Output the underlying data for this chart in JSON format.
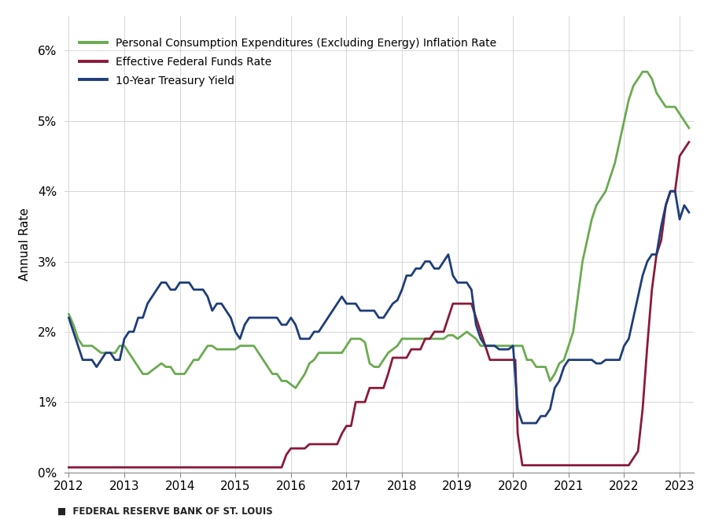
{
  "ylabel": "Annual Rate",
  "xlabel": "",
  "ylim": [
    0.0,
    0.065
  ],
  "yticks": [
    0.0,
    0.01,
    0.02,
    0.03,
    0.04,
    0.05,
    0.06
  ],
  "ytick_labels": [
    "0%",
    "1%",
    "2%",
    "3%",
    "4%",
    "5%",
    "6%"
  ],
  "background_color": "#ffffff",
  "footer": "■  FEDERAL RESERVE BANK OF ST. LOUIS",
  "legend": [
    {
      "label": "Personal Consumption Expenditures (Excluding Energy) Inflation Rate",
      "color": "#6aaa50"
    },
    {
      "label": "Effective Federal Funds Rate",
      "color": "#8b1a3a"
    },
    {
      "label": "10-Year Treasury Yield",
      "color": "#1e3d7a"
    }
  ],
  "pce": {
    "dates": [
      2012.0,
      2012.083,
      2012.167,
      2012.25,
      2012.333,
      2012.417,
      2012.5,
      2012.583,
      2012.667,
      2012.75,
      2012.833,
      2012.917,
      2013.0,
      2013.083,
      2013.167,
      2013.25,
      2013.333,
      2013.417,
      2013.5,
      2013.583,
      2013.667,
      2013.75,
      2013.833,
      2013.917,
      2014.0,
      2014.083,
      2014.167,
      2014.25,
      2014.333,
      2014.417,
      2014.5,
      2014.583,
      2014.667,
      2014.75,
      2014.833,
      2014.917,
      2015.0,
      2015.083,
      2015.167,
      2015.25,
      2015.333,
      2015.417,
      2015.5,
      2015.583,
      2015.667,
      2015.75,
      2015.833,
      2015.917,
      2016.0,
      2016.083,
      2016.167,
      2016.25,
      2016.333,
      2016.417,
      2016.5,
      2016.583,
      2016.667,
      2016.75,
      2016.833,
      2016.917,
      2017.0,
      2017.083,
      2017.167,
      2017.25,
      2017.333,
      2017.417,
      2017.5,
      2017.583,
      2017.667,
      2017.75,
      2017.833,
      2017.917,
      2018.0,
      2018.083,
      2018.167,
      2018.25,
      2018.333,
      2018.417,
      2018.5,
      2018.583,
      2018.667,
      2018.75,
      2018.833,
      2018.917,
      2019.0,
      2019.083,
      2019.167,
      2019.25,
      2019.333,
      2019.417,
      2019.5,
      2019.583,
      2019.667,
      2019.75,
      2019.833,
      2019.917,
      2020.0,
      2020.083,
      2020.167,
      2020.25,
      2020.333,
      2020.417,
      2020.5,
      2020.583,
      2020.667,
      2020.75,
      2020.833,
      2020.917,
      2021.0,
      2021.083,
      2021.167,
      2021.25,
      2021.333,
      2021.417,
      2021.5,
      2021.583,
      2021.667,
      2021.75,
      2021.833,
      2021.917,
      2022.0,
      2022.083,
      2022.167,
      2022.25,
      2022.333,
      2022.417,
      2022.5,
      2022.583,
      2022.667,
      2022.75,
      2022.833,
      2022.917,
      2023.0,
      2023.083,
      2023.167
    ],
    "values": [
      0.0225,
      0.021,
      0.019,
      0.018,
      0.018,
      0.018,
      0.0175,
      0.017,
      0.017,
      0.017,
      0.017,
      0.018,
      0.018,
      0.017,
      0.016,
      0.015,
      0.014,
      0.014,
      0.0145,
      0.015,
      0.0155,
      0.015,
      0.015,
      0.014,
      0.014,
      0.014,
      0.015,
      0.016,
      0.016,
      0.017,
      0.018,
      0.018,
      0.0175,
      0.0175,
      0.0175,
      0.0175,
      0.0175,
      0.018,
      0.018,
      0.018,
      0.018,
      0.017,
      0.016,
      0.015,
      0.014,
      0.014,
      0.013,
      0.013,
      0.0125,
      0.012,
      0.013,
      0.014,
      0.0155,
      0.016,
      0.017,
      0.017,
      0.017,
      0.017,
      0.017,
      0.017,
      0.018,
      0.019,
      0.019,
      0.019,
      0.0185,
      0.0155,
      0.015,
      0.015,
      0.016,
      0.017,
      0.0175,
      0.018,
      0.019,
      0.019,
      0.019,
      0.019,
      0.019,
      0.019,
      0.019,
      0.019,
      0.019,
      0.019,
      0.0195,
      0.0195,
      0.019,
      0.0195,
      0.02,
      0.0195,
      0.019,
      0.018,
      0.018,
      0.018,
      0.018,
      0.018,
      0.018,
      0.018,
      0.018,
      0.018,
      0.018,
      0.016,
      0.016,
      0.015,
      0.015,
      0.015,
      0.013,
      0.014,
      0.0155,
      0.016,
      0.018,
      0.02,
      0.025,
      0.03,
      0.033,
      0.036,
      0.038,
      0.039,
      0.04,
      0.042,
      0.044,
      0.047,
      0.05,
      0.053,
      0.055,
      0.056,
      0.057,
      0.057,
      0.056,
      0.054,
      0.053,
      0.052,
      0.052,
      0.052,
      0.051,
      0.05,
      0.049
    ]
  },
  "fed_funds": {
    "dates": [
      2012.0,
      2012.083,
      2012.167,
      2012.25,
      2012.333,
      2012.417,
      2012.5,
      2012.583,
      2012.667,
      2012.75,
      2012.833,
      2012.917,
      2013.0,
      2013.083,
      2013.167,
      2013.25,
      2013.333,
      2013.417,
      2013.5,
      2013.583,
      2013.667,
      2013.75,
      2013.833,
      2013.917,
      2014.0,
      2014.083,
      2014.167,
      2014.25,
      2014.333,
      2014.417,
      2014.5,
      2014.583,
      2014.667,
      2014.75,
      2014.833,
      2014.917,
      2015.0,
      2015.083,
      2015.167,
      2015.25,
      2015.333,
      2015.417,
      2015.5,
      2015.583,
      2015.667,
      2015.75,
      2015.833,
      2015.917,
      2016.0,
      2016.083,
      2016.167,
      2016.25,
      2016.333,
      2016.417,
      2016.5,
      2016.583,
      2016.667,
      2016.75,
      2016.833,
      2016.917,
      2017.0,
      2017.083,
      2017.167,
      2017.25,
      2017.333,
      2017.417,
      2017.5,
      2017.583,
      2017.667,
      2017.75,
      2017.833,
      2017.917,
      2018.0,
      2018.083,
      2018.167,
      2018.25,
      2018.333,
      2018.417,
      2018.5,
      2018.583,
      2018.667,
      2018.75,
      2018.833,
      2018.917,
      2019.0,
      2019.083,
      2019.167,
      2019.25,
      2019.333,
      2019.417,
      2019.5,
      2019.583,
      2019.667,
      2019.75,
      2019.833,
      2019.917,
      2020.0,
      2020.04,
      2020.083,
      2020.167,
      2020.25,
      2020.333,
      2020.417,
      2020.5,
      2020.583,
      2020.667,
      2020.75,
      2020.833,
      2020.917,
      2021.0,
      2021.083,
      2021.167,
      2021.25,
      2021.333,
      2021.417,
      2021.5,
      2021.583,
      2021.667,
      2021.75,
      2021.833,
      2021.917,
      2022.0,
      2022.083,
      2022.167,
      2022.25,
      2022.333,
      2022.417,
      2022.5,
      2022.583,
      2022.667,
      2022.75,
      2022.833,
      2022.917,
      2023.0,
      2023.083,
      2023.167
    ],
    "values": [
      0.0007,
      0.0007,
      0.0007,
      0.0007,
      0.0007,
      0.0007,
      0.0007,
      0.0007,
      0.0007,
      0.0007,
      0.0007,
      0.0007,
      0.0007,
      0.0007,
      0.0007,
      0.0007,
      0.0007,
      0.0007,
      0.0007,
      0.0007,
      0.0007,
      0.0007,
      0.0007,
      0.0007,
      0.0007,
      0.0007,
      0.0007,
      0.0007,
      0.0007,
      0.0007,
      0.0007,
      0.0007,
      0.0007,
      0.0007,
      0.0007,
      0.0007,
      0.0007,
      0.0007,
      0.0007,
      0.0007,
      0.0007,
      0.0007,
      0.0007,
      0.0007,
      0.0007,
      0.0007,
      0.0007,
      0.0025,
      0.0034,
      0.0034,
      0.0034,
      0.0034,
      0.004,
      0.004,
      0.004,
      0.004,
      0.004,
      0.004,
      0.004,
      0.0055,
      0.0066,
      0.0066,
      0.01,
      0.01,
      0.01,
      0.012,
      0.012,
      0.012,
      0.012,
      0.014,
      0.0163,
      0.0163,
      0.0163,
      0.0163,
      0.0175,
      0.0175,
      0.0175,
      0.019,
      0.019,
      0.02,
      0.02,
      0.02,
      0.022,
      0.024,
      0.024,
      0.024,
      0.024,
      0.024,
      0.022,
      0.02,
      0.018,
      0.016,
      0.016,
      0.016,
      0.016,
      0.016,
      0.016,
      0.016,
      0.0055,
      0.001,
      0.001,
      0.001,
      0.001,
      0.001,
      0.001,
      0.001,
      0.001,
      0.001,
      0.001,
      0.001,
      0.001,
      0.001,
      0.001,
      0.001,
      0.001,
      0.001,
      0.001,
      0.001,
      0.001,
      0.001,
      0.001,
      0.001,
      0.001,
      0.002,
      0.003,
      0.009,
      0.018,
      0.026,
      0.031,
      0.033,
      0.038,
      0.04,
      0.04,
      0.045,
      0.046,
      0.047
    ]
  },
  "treasury": {
    "dates": [
      2012.0,
      2012.083,
      2012.167,
      2012.25,
      2012.333,
      2012.417,
      2012.5,
      2012.583,
      2012.667,
      2012.75,
      2012.833,
      2012.917,
      2013.0,
      2013.083,
      2013.167,
      2013.25,
      2013.333,
      2013.417,
      2013.5,
      2013.583,
      2013.667,
      2013.75,
      2013.833,
      2013.917,
      2014.0,
      2014.083,
      2014.167,
      2014.25,
      2014.333,
      2014.417,
      2014.5,
      2014.583,
      2014.667,
      2014.75,
      2014.833,
      2014.917,
      2015.0,
      2015.083,
      2015.167,
      2015.25,
      2015.333,
      2015.417,
      2015.5,
      2015.583,
      2015.667,
      2015.75,
      2015.833,
      2015.917,
      2016.0,
      2016.083,
      2016.167,
      2016.25,
      2016.333,
      2016.417,
      2016.5,
      2016.583,
      2016.667,
      2016.75,
      2016.833,
      2016.917,
      2017.0,
      2017.083,
      2017.167,
      2017.25,
      2017.333,
      2017.417,
      2017.5,
      2017.583,
      2017.667,
      2017.75,
      2017.833,
      2017.917,
      2018.0,
      2018.083,
      2018.167,
      2018.25,
      2018.333,
      2018.417,
      2018.5,
      2018.583,
      2018.667,
      2018.75,
      2018.833,
      2018.917,
      2019.0,
      2019.083,
      2019.167,
      2019.25,
      2019.333,
      2019.417,
      2019.5,
      2019.583,
      2019.667,
      2019.75,
      2019.833,
      2019.917,
      2020.0,
      2020.083,
      2020.167,
      2020.25,
      2020.333,
      2020.417,
      2020.5,
      2020.583,
      2020.667,
      2020.75,
      2020.833,
      2020.917,
      2021.0,
      2021.083,
      2021.167,
      2021.25,
      2021.333,
      2021.417,
      2021.5,
      2021.583,
      2021.667,
      2021.75,
      2021.833,
      2021.917,
      2022.0,
      2022.083,
      2022.167,
      2022.25,
      2022.333,
      2022.417,
      2022.5,
      2022.583,
      2022.667,
      2022.75,
      2022.833,
      2022.917,
      2023.0,
      2023.083,
      2023.167
    ],
    "values": [
      0.022,
      0.02,
      0.018,
      0.016,
      0.016,
      0.016,
      0.015,
      0.016,
      0.017,
      0.017,
      0.016,
      0.016,
      0.019,
      0.02,
      0.02,
      0.022,
      0.022,
      0.024,
      0.025,
      0.026,
      0.027,
      0.027,
      0.026,
      0.026,
      0.027,
      0.027,
      0.027,
      0.026,
      0.026,
      0.026,
      0.025,
      0.023,
      0.024,
      0.024,
      0.023,
      0.022,
      0.02,
      0.019,
      0.021,
      0.022,
      0.022,
      0.022,
      0.022,
      0.022,
      0.022,
      0.022,
      0.021,
      0.021,
      0.022,
      0.021,
      0.019,
      0.019,
      0.019,
      0.02,
      0.02,
      0.021,
      0.022,
      0.023,
      0.024,
      0.025,
      0.024,
      0.024,
      0.024,
      0.023,
      0.023,
      0.023,
      0.023,
      0.022,
      0.022,
      0.023,
      0.024,
      0.0245,
      0.026,
      0.028,
      0.028,
      0.029,
      0.029,
      0.03,
      0.03,
      0.029,
      0.029,
      0.03,
      0.031,
      0.028,
      0.027,
      0.027,
      0.027,
      0.026,
      0.021,
      0.019,
      0.018,
      0.018,
      0.018,
      0.0175,
      0.0175,
      0.0175,
      0.018,
      0.009,
      0.007,
      0.007,
      0.007,
      0.007,
      0.008,
      0.008,
      0.009,
      0.012,
      0.013,
      0.015,
      0.016,
      0.016,
      0.016,
      0.016,
      0.016,
      0.016,
      0.0155,
      0.0155,
      0.016,
      0.016,
      0.016,
      0.016,
      0.018,
      0.019,
      0.022,
      0.025,
      0.028,
      0.03,
      0.031,
      0.031,
      0.035,
      0.038,
      0.04,
      0.04,
      0.036,
      0.038,
      0.037
    ]
  },
  "pce_color": "#6aaa50",
  "fed_color": "#8b1a3a",
  "treasury_color": "#1e3d7a",
  "line_width": 2.0
}
